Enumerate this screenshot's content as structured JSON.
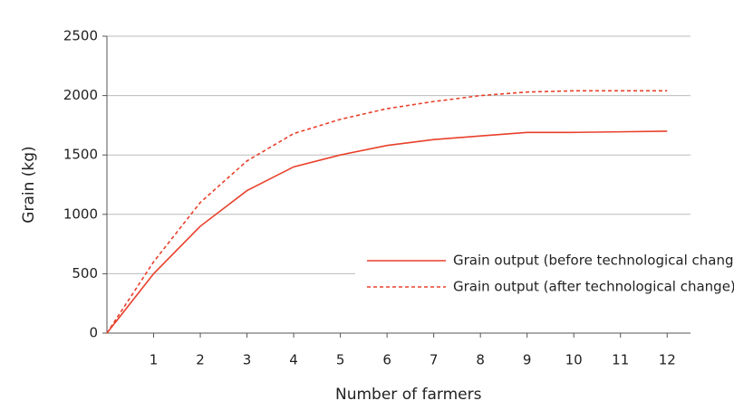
{
  "chart_data": {
    "type": "line",
    "x_label": "Number of farmers",
    "y_label": "Grain (kg)",
    "x": [
      0,
      1,
      2,
      3,
      4,
      5,
      6,
      7,
      8,
      9,
      10,
      11,
      12
    ],
    "series": [
      {
        "name": "Grain output (before technological change)",
        "color": "#e8402a",
        "dash": false,
        "values": [
          0,
          500,
          900,
          1200,
          1400,
          1500,
          1580,
          1630,
          1660,
          1690,
          1690,
          1695,
          1700
        ]
      },
      {
        "name": "Grain output (after technological change)",
        "color": "#e8402a",
        "dash": true,
        "values": [
          0,
          600,
          1100,
          1450,
          1680,
          1800,
          1890,
          1950,
          2000,
          2030,
          2040,
          2040,
          2040
        ]
      }
    ],
    "xlim": [
      0,
      12.5
    ],
    "xticks": [
      1,
      2,
      3,
      4,
      5,
      6,
      7,
      8,
      9,
      10,
      11,
      12
    ],
    "ylim": [
      0,
      2500
    ],
    "yticks": [
      0,
      500,
      1000,
      1500,
      2000,
      2500
    ],
    "grid": true
  }
}
